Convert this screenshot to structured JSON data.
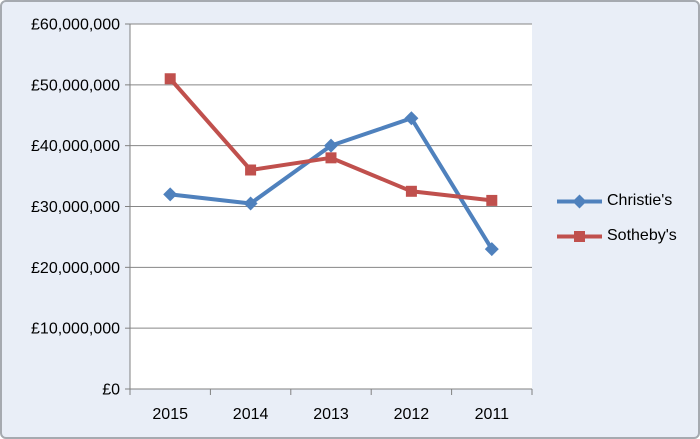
{
  "chart_data": {
    "type": "line",
    "title": "",
    "categories": [
      "2015",
      "2014",
      "2013",
      "2012",
      "2011"
    ],
    "series": [
      {
        "name": "Christie's",
        "color": "#4F81BD",
        "marker": "diamond",
        "values": [
          32000000,
          30500000,
          40000000,
          44500000,
          23000000
        ]
      },
      {
        "name": "Sotheby's",
        "color": "#C0504D",
        "marker": "square",
        "values": [
          51000000,
          36000000,
          38000000,
          32500000,
          31000000
        ]
      }
    ],
    "xlabel": "",
    "ylabel": "",
    "ylim": [
      0,
      60000000
    ],
    "ytick_step": 10000000,
    "ytick_labels": [
      "£0",
      "£10,000,000",
      "£20,000,000",
      "£30,000,000",
      "£40,000,000",
      "£50,000,000",
      "£60,000,000"
    ],
    "grid": true,
    "legend_position": "right"
  },
  "colors": {
    "frame_background": "#E9EEF7",
    "plot_background": "#FFFFFF",
    "gridline": "#868686",
    "axis_line": "#808080",
    "text": "#000000",
    "frame_border": "#A6AAB0",
    "christies": "#4F81BD",
    "sothebys": "#C0504D"
  }
}
